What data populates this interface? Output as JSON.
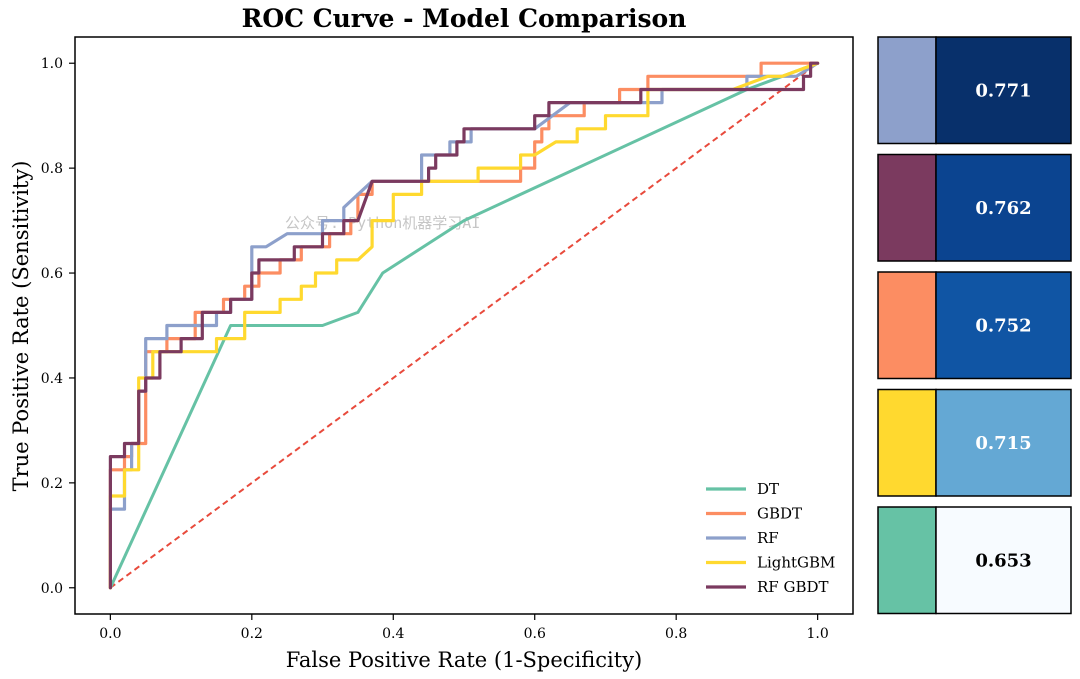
{
  "chart_data": {
    "type": "line",
    "title": "ROC Curve - Model Comparison",
    "xlabel": "False Positive Rate (1-Specificity)",
    "ylabel": "True Positive Rate (Sensitivity)",
    "xlim": [
      -0.05,
      1.05
    ],
    "ylim": [
      -0.05,
      1.05
    ],
    "xticks": [
      "0.0",
      "0.2",
      "0.4",
      "0.6",
      "0.8",
      "1.0"
    ],
    "yticks": [
      "0.0",
      "0.2",
      "0.4",
      "0.6",
      "0.8",
      "1.0"
    ],
    "legend_position": "lower-right",
    "reference_line": {
      "name": "chance",
      "color": "#e84a3c",
      "points": [
        [
          0,
          0
        ],
        [
          1,
          1
        ]
      ]
    },
    "watermark": "公众号: Python机器学习AI",
    "series": [
      {
        "name": "DT",
        "color": "#66c2a5",
        "auc": "0.653",
        "points": [
          [
            0,
            0
          ],
          [
            0.17,
            0.5
          ],
          [
            0.3,
            0.5
          ],
          [
            0.35,
            0.525
          ],
          [
            0.385,
            0.6
          ],
          [
            0.5,
            0.7
          ],
          [
            0.9,
            0.95
          ],
          [
            1,
            1
          ]
        ]
      },
      {
        "name": "GBDT",
        "color": "#fc8d62",
        "auc": "0.752",
        "points": [
          [
            0,
            0
          ],
          [
            0,
            0.225
          ],
          [
            0.02,
            0.225
          ],
          [
            0.02,
            0.25
          ],
          [
            0.03,
            0.25
          ],
          [
            0.03,
            0.275
          ],
          [
            0.05,
            0.275
          ],
          [
            0.05,
            0.45
          ],
          [
            0.08,
            0.45
          ],
          [
            0.08,
            0.475
          ],
          [
            0.12,
            0.475
          ],
          [
            0.12,
            0.525
          ],
          [
            0.16,
            0.525
          ],
          [
            0.16,
            0.55
          ],
          [
            0.19,
            0.55
          ],
          [
            0.19,
            0.575
          ],
          [
            0.21,
            0.575
          ],
          [
            0.21,
            0.6
          ],
          [
            0.24,
            0.6
          ],
          [
            0.24,
            0.625
          ],
          [
            0.27,
            0.625
          ],
          [
            0.27,
            0.65
          ],
          [
            0.31,
            0.65
          ],
          [
            0.31,
            0.675
          ],
          [
            0.34,
            0.675
          ],
          [
            0.34,
            0.7
          ],
          [
            0.35,
            0.7
          ],
          [
            0.35,
            0.75
          ],
          [
            0.37,
            0.75
          ],
          [
            0.37,
            0.775
          ],
          [
            0.5,
            0.775
          ],
          [
            0.58,
            0.775
          ],
          [
            0.58,
            0.8
          ],
          [
            0.6,
            0.8
          ],
          [
            0.6,
            0.85
          ],
          [
            0.61,
            0.85
          ],
          [
            0.61,
            0.875
          ],
          [
            0.62,
            0.875
          ],
          [
            0.62,
            0.9
          ],
          [
            0.67,
            0.9
          ],
          [
            0.67,
            0.925
          ],
          [
            0.72,
            0.925
          ],
          [
            0.72,
            0.95
          ],
          [
            0.76,
            0.95
          ],
          [
            0.76,
            0.975
          ],
          [
            0.92,
            0.975
          ],
          [
            0.92,
            1.0
          ],
          [
            1,
            1.0
          ]
        ]
      },
      {
        "name": "RF",
        "color": "#8da0cb",
        "auc": "0.771",
        "points": [
          [
            0,
            0.15
          ],
          [
            0.02,
            0.15
          ],
          [
            0.02,
            0.225
          ],
          [
            0.03,
            0.225
          ],
          [
            0.03,
            0.275
          ],
          [
            0.04,
            0.275
          ],
          [
            0.04,
            0.375
          ],
          [
            0.05,
            0.375
          ],
          [
            0.05,
            0.475
          ],
          [
            0.08,
            0.475
          ],
          [
            0.08,
            0.5
          ],
          [
            0.15,
            0.5
          ],
          [
            0.15,
            0.525
          ],
          [
            0.17,
            0.525
          ],
          [
            0.17,
            0.55
          ],
          [
            0.2,
            0.55
          ],
          [
            0.2,
            0.65
          ],
          [
            0.22,
            0.65
          ],
          [
            0.25,
            0.675
          ],
          [
            0.3,
            0.675
          ],
          [
            0.3,
            0.7
          ],
          [
            0.33,
            0.7
          ],
          [
            0.33,
            0.725
          ],
          [
            0.35,
            0.75
          ],
          [
            0.37,
            0.775
          ],
          [
            0.44,
            0.775
          ],
          [
            0.44,
            0.825
          ],
          [
            0.48,
            0.825
          ],
          [
            0.48,
            0.85
          ],
          [
            0.51,
            0.85
          ],
          [
            0.51,
            0.875
          ],
          [
            0.6,
            0.875
          ],
          [
            0.65,
            0.925
          ],
          [
            0.78,
            0.925
          ],
          [
            0.78,
            0.95
          ],
          [
            0.9,
            0.95
          ],
          [
            0.9,
            0.975
          ],
          [
            0.97,
            0.975
          ],
          [
            1,
            1.0
          ]
        ]
      },
      {
        "name": "LightGBM",
        "color": "#ffd92f",
        "auc": "0.715",
        "points": [
          [
            0,
            0
          ],
          [
            0,
            0.175
          ],
          [
            0.02,
            0.175
          ],
          [
            0.02,
            0.225
          ],
          [
            0.04,
            0.225
          ],
          [
            0.04,
            0.4
          ],
          [
            0.06,
            0.4
          ],
          [
            0.06,
            0.45
          ],
          [
            0.15,
            0.45
          ],
          [
            0.15,
            0.475
          ],
          [
            0.19,
            0.475
          ],
          [
            0.19,
            0.525
          ],
          [
            0.24,
            0.525
          ],
          [
            0.24,
            0.55
          ],
          [
            0.27,
            0.55
          ],
          [
            0.27,
            0.575
          ],
          [
            0.29,
            0.575
          ],
          [
            0.29,
            0.6
          ],
          [
            0.32,
            0.6
          ],
          [
            0.32,
            0.625
          ],
          [
            0.35,
            0.625
          ],
          [
            0.37,
            0.65
          ],
          [
            0.37,
            0.7
          ],
          [
            0.4,
            0.7
          ],
          [
            0.4,
            0.75
          ],
          [
            0.44,
            0.75
          ],
          [
            0.44,
            0.775
          ],
          [
            0.52,
            0.775
          ],
          [
            0.52,
            0.8
          ],
          [
            0.58,
            0.8
          ],
          [
            0.58,
            0.825
          ],
          [
            0.6,
            0.825
          ],
          [
            0.63,
            0.85
          ],
          [
            0.66,
            0.85
          ],
          [
            0.66,
            0.875
          ],
          [
            0.7,
            0.875
          ],
          [
            0.7,
            0.9
          ],
          [
            0.76,
            0.9
          ],
          [
            0.76,
            0.95
          ],
          [
            0.88,
            0.95
          ],
          [
            0.93,
            0.975
          ],
          [
            0.95,
            0.975
          ],
          [
            1,
            1.0
          ]
        ]
      },
      {
        "name": "RF GBDT",
        "color": "#7b3a5f",
        "auc": "0.762",
        "points": [
          [
            0,
            0
          ],
          [
            0,
            0.25
          ],
          [
            0.02,
            0.25
          ],
          [
            0.02,
            0.275
          ],
          [
            0.04,
            0.275
          ],
          [
            0.04,
            0.375
          ],
          [
            0.05,
            0.375
          ],
          [
            0.05,
            0.4
          ],
          [
            0.07,
            0.4
          ],
          [
            0.07,
            0.45
          ],
          [
            0.1,
            0.45
          ],
          [
            0.1,
            0.475
          ],
          [
            0.13,
            0.475
          ],
          [
            0.13,
            0.525
          ],
          [
            0.17,
            0.525
          ],
          [
            0.17,
            0.55
          ],
          [
            0.2,
            0.55
          ],
          [
            0.2,
            0.6
          ],
          [
            0.21,
            0.6
          ],
          [
            0.21,
            0.625
          ],
          [
            0.26,
            0.625
          ],
          [
            0.26,
            0.65
          ],
          [
            0.3,
            0.65
          ],
          [
            0.3,
            0.675
          ],
          [
            0.33,
            0.675
          ],
          [
            0.33,
            0.7
          ],
          [
            0.35,
            0.7
          ],
          [
            0.37,
            0.775
          ],
          [
            0.45,
            0.775
          ],
          [
            0.45,
            0.8
          ],
          [
            0.46,
            0.8
          ],
          [
            0.46,
            0.825
          ],
          [
            0.49,
            0.825
          ],
          [
            0.49,
            0.85
          ],
          [
            0.5,
            0.85
          ],
          [
            0.5,
            0.875
          ],
          [
            0.6,
            0.875
          ],
          [
            0.6,
            0.9
          ],
          [
            0.62,
            0.9
          ],
          [
            0.62,
            0.925
          ],
          [
            0.75,
            0.925
          ],
          [
            0.75,
            0.95
          ],
          [
            0.98,
            0.95
          ],
          [
            0.98,
            0.975
          ],
          [
            0.99,
            0.975
          ],
          [
            0.99,
            1.0
          ],
          [
            1,
            1.0
          ]
        ]
      }
    ],
    "auc_panel": [
      {
        "model": "RF",
        "auc": "0.771",
        "swatch_color": "#8da0cb",
        "cell_color": "#08306b",
        "text_color": "#ffffff"
      },
      {
        "model": "RF GBDT",
        "auc": "0.762",
        "swatch_color": "#7b3a5f",
        "cell_color": "#0b4490",
        "text_color": "#ffffff"
      },
      {
        "model": "GBDT",
        "auc": "0.752",
        "swatch_color": "#fc8d62",
        "cell_color": "#1055a4",
        "text_color": "#ffffff"
      },
      {
        "model": "LightGBM",
        "auc": "0.715",
        "swatch_color": "#ffd92f",
        "cell_color": "#64a8d4",
        "text_color": "#ffffff"
      },
      {
        "model": "DT",
        "auc": "0.653",
        "swatch_color": "#66c2a5",
        "cell_color": "#f7fbff",
        "text_color": "#000000"
      }
    ]
  }
}
